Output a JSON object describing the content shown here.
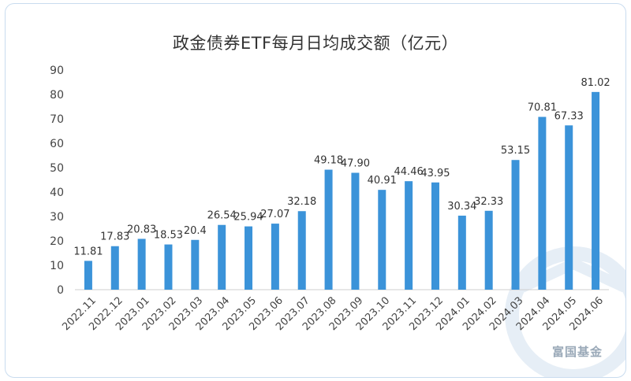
{
  "chart_data": {
    "type": "bar",
    "title": "政金债券ETF每月日均成交额（亿元）",
    "categories": [
      "2022.11",
      "2022.12",
      "2023.01",
      "2023.02",
      "2023.03",
      "2023.04",
      "2023.05",
      "2023.06",
      "2023.07",
      "2023.08",
      "2023.09",
      "2023.10",
      "2023.11",
      "2023.12",
      "2024.01",
      "2024.02",
      "2024.03",
      "2024.04",
      "2024.05",
      "2024.06"
    ],
    "values": [
      11.81,
      17.83,
      20.83,
      18.53,
      20.4,
      26.54,
      25.94,
      27.07,
      32.18,
      49.18,
      47.9,
      40.91,
      44.46,
      43.95,
      30.34,
      32.33,
      53.15,
      70.81,
      67.33,
      81.02
    ],
    "value_labels": [
      "11.81",
      "17.83",
      "20.83",
      "18.53",
      "20.4",
      "26.54",
      "25.94",
      "27.07",
      "32.18",
      "49.18",
      "47.90",
      "40.91",
      "44.46",
      "43.95",
      "30.34",
      "32.33",
      "53.15",
      "70.81",
      "67.33",
      "81.02"
    ],
    "ylim": [
      0,
      90
    ],
    "yticks": [
      0,
      10,
      20,
      30,
      40,
      50,
      60,
      70,
      80,
      90
    ],
    "grid": false,
    "xlabel": "",
    "ylabel": "",
    "bar_color": "#3b93d9"
  },
  "watermark": {
    "text": "富国基金"
  }
}
